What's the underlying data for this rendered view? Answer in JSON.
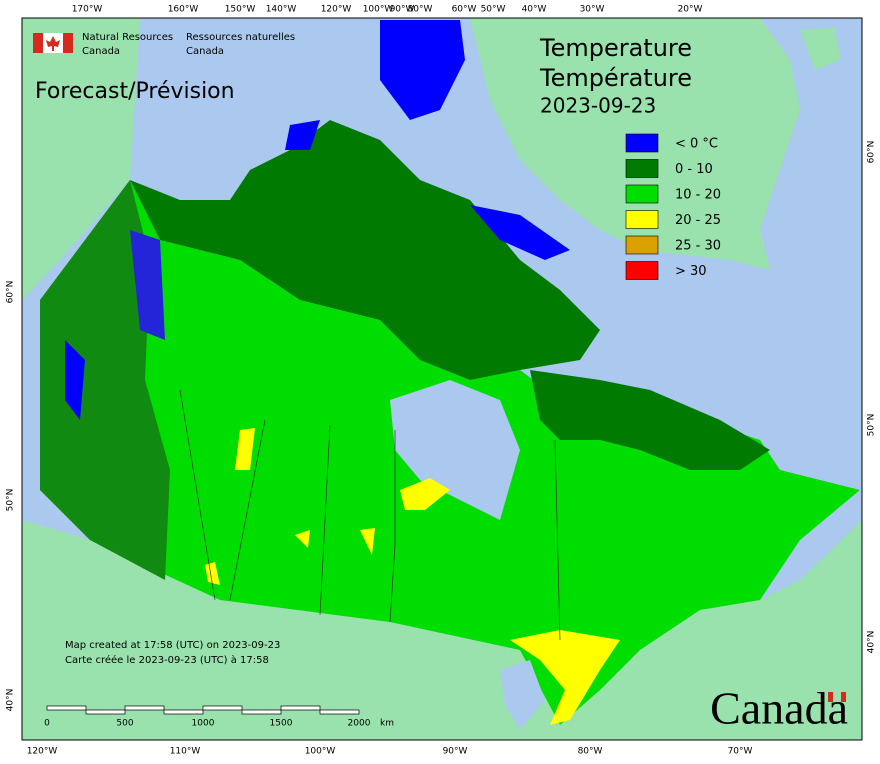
{
  "header": {
    "agency_en": [
      "Natural Resources",
      "Canada"
    ],
    "agency_fr": [
      "Ressources naturelles",
      "Canada"
    ],
    "forecast": "Forecast/Prévision",
    "title_en": "Temperature",
    "title_fr": "Température",
    "date": "2023-09-23"
  },
  "legend": [
    {
      "label": "< 0 °C",
      "color": "#0000ff"
    },
    {
      "label": "0 - 10",
      "color": "#007a00"
    },
    {
      "label": "10 - 20",
      "color": "#00dd00"
    },
    {
      "label": "20 - 25",
      "color": "#ffff00"
    },
    {
      "label": "25 - 30",
      "color": "#d9a000"
    },
    {
      "label": "> 30",
      "color": "#ff0000"
    }
  ],
  "graticule": {
    "top": [
      "170°W",
      "160°W",
      "150°W",
      "140°W",
      "120°W",
      "100°W",
      "90°W",
      "80°W",
      "60°W",
      "50°W",
      "40°W",
      "30°W",
      "20°W"
    ],
    "bottom": [
      "120°W",
      "110°W",
      "100°W",
      "90°W",
      "80°W",
      "70°W"
    ],
    "left": [
      "60°N",
      "50°N",
      "40°N"
    ],
    "right": [
      "60°N",
      "50°N",
      "40°N"
    ]
  },
  "notes": [
    "Map created at 17:58 (UTC) on 2023-09-23",
    "Carte créée le 2023-09-23 (UTC) à 17:58"
  ],
  "scale": {
    "labels": [
      "0",
      "500",
      "1000",
      "1500",
      "2000"
    ],
    "unit": "km"
  },
  "wordmark": "Canada"
}
